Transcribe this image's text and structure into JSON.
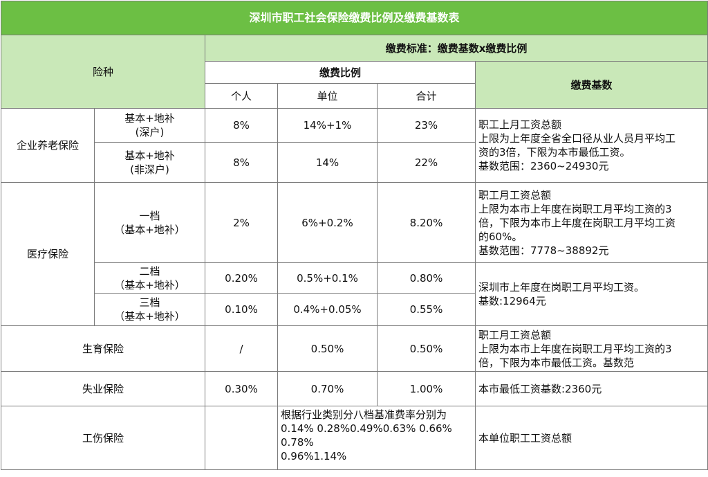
{
  "title": "深圳市职工社会保险缴费比例及缴费基数表",
  "header": {
    "type_label": "险种",
    "standard_label": "缴费标准：缴费基数x缴费比例",
    "ratio_label": "缴费比例",
    "base_label": "缴费基数",
    "personal_label": "个人",
    "company_label": "单位",
    "total_label": "合计"
  },
  "pension": {
    "name": "企业养老保险",
    "rows": [
      {
        "sub_line1": "基本+地补",
        "sub_line2": "(深户)",
        "personal": "8%",
        "company": "14%+1%",
        "total": "23%"
      },
      {
        "sub_line1": "基本+地补",
        "sub_line2": "(非深户)",
        "personal": "8%",
        "company": "14%",
        "total": "22%"
      }
    ],
    "base_lines": [
      "职工上月工资总额",
      "上限为上年度全省全口径从业人员月平均工",
      "资的3倍，下限为本市最低工资。",
      "基数范围：2360~24930元"
    ]
  },
  "medical": {
    "name": "医疗保险",
    "rows": [
      {
        "sub_line1": "一档",
        "sub_line2": "（基本+地补）",
        "personal": "2%",
        "company": "6%+0.2%",
        "total": "8.20%"
      },
      {
        "sub_line1": "二档",
        "sub_line2": "（基本+地补）",
        "personal": "0.20%",
        "company": "0.5%+0.1%",
        "total": "0.80%"
      },
      {
        "sub_line1": "三档",
        "sub_line2": "（基本+地补）",
        "personal": "0.10%",
        "company": "0.4%+0.05%",
        "total": "0.55%"
      }
    ],
    "base1_lines": [
      "职工月工资总额",
      "上限为本市上年度在岗职工月平均工资的3",
      "倍，下限为本市上年度在岗职工月平均工资",
      "的60%。",
      "基数范围：7778~38892元"
    ],
    "base2_lines": [
      "深圳市上年度在岗职工月平均工资。",
      "基数:12964元"
    ]
  },
  "maternity": {
    "name": "生育保险",
    "personal": "/",
    "company": "0.50%",
    "total": "0.50%",
    "base_lines": [
      "职工月工资总额",
      "上限为本市上年度在岗职工月平均工资的3",
      "倍，下限为本市最低工资。基数范"
    ]
  },
  "unemployment": {
    "name": "失业保险",
    "personal": "0.30%",
    "company": "0.70%",
    "total": "1.00%",
    "base": "本市最低工资基数:2360元"
  },
  "injury": {
    "name": "工伤保险",
    "rate_lines": [
      "根据行业类别分八档基准费率分别为",
      "0.14% 0.28%0.49%0.63% 0.66%",
      "0.78%",
      "0.96%1.14%"
    ],
    "base": "本单位职工工资总额"
  }
}
